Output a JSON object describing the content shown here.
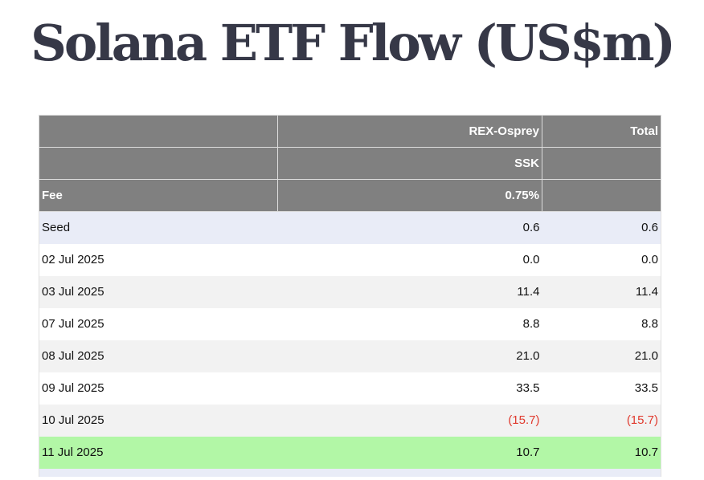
{
  "title": "Solana ETF Flow (US$m)",
  "header": {
    "issuer_row": [
      "",
      "REX-Osprey",
      "Total"
    ],
    "ticker_row": [
      "",
      "SSK",
      ""
    ],
    "fee_row": [
      "Fee",
      "0.75%",
      ""
    ]
  },
  "rows": [
    {
      "date": "Seed",
      "ssk": "0.6",
      "total": "0.6"
    },
    {
      "date": "02 Jul 2025",
      "ssk": "0.0",
      "total": "0.0"
    },
    {
      "date": "03 Jul 2025",
      "ssk": "11.4",
      "total": "11.4"
    },
    {
      "date": "07 Jul 2025",
      "ssk": "8.8",
      "total": "8.8"
    },
    {
      "date": "08 Jul 2025",
      "ssk": "21.0",
      "total": "21.0"
    },
    {
      "date": "09 Jul 2025",
      "ssk": "33.5",
      "total": "33.5"
    },
    {
      "date": "10 Jul 2025",
      "ssk": "(15.7)",
      "total": "(15.7)"
    },
    {
      "date": "11 Jul 2025",
      "ssk": "10.7",
      "total": "10.7"
    }
  ],
  "colors": {
    "title": "#363847",
    "header_bg": "#808080",
    "seed_row_bg": "#e9ecf7",
    "alt_row_bg": "#f2f2f2",
    "highlight_row_bg": "#b2f7a6",
    "negative_text": "#e03b2f"
  }
}
